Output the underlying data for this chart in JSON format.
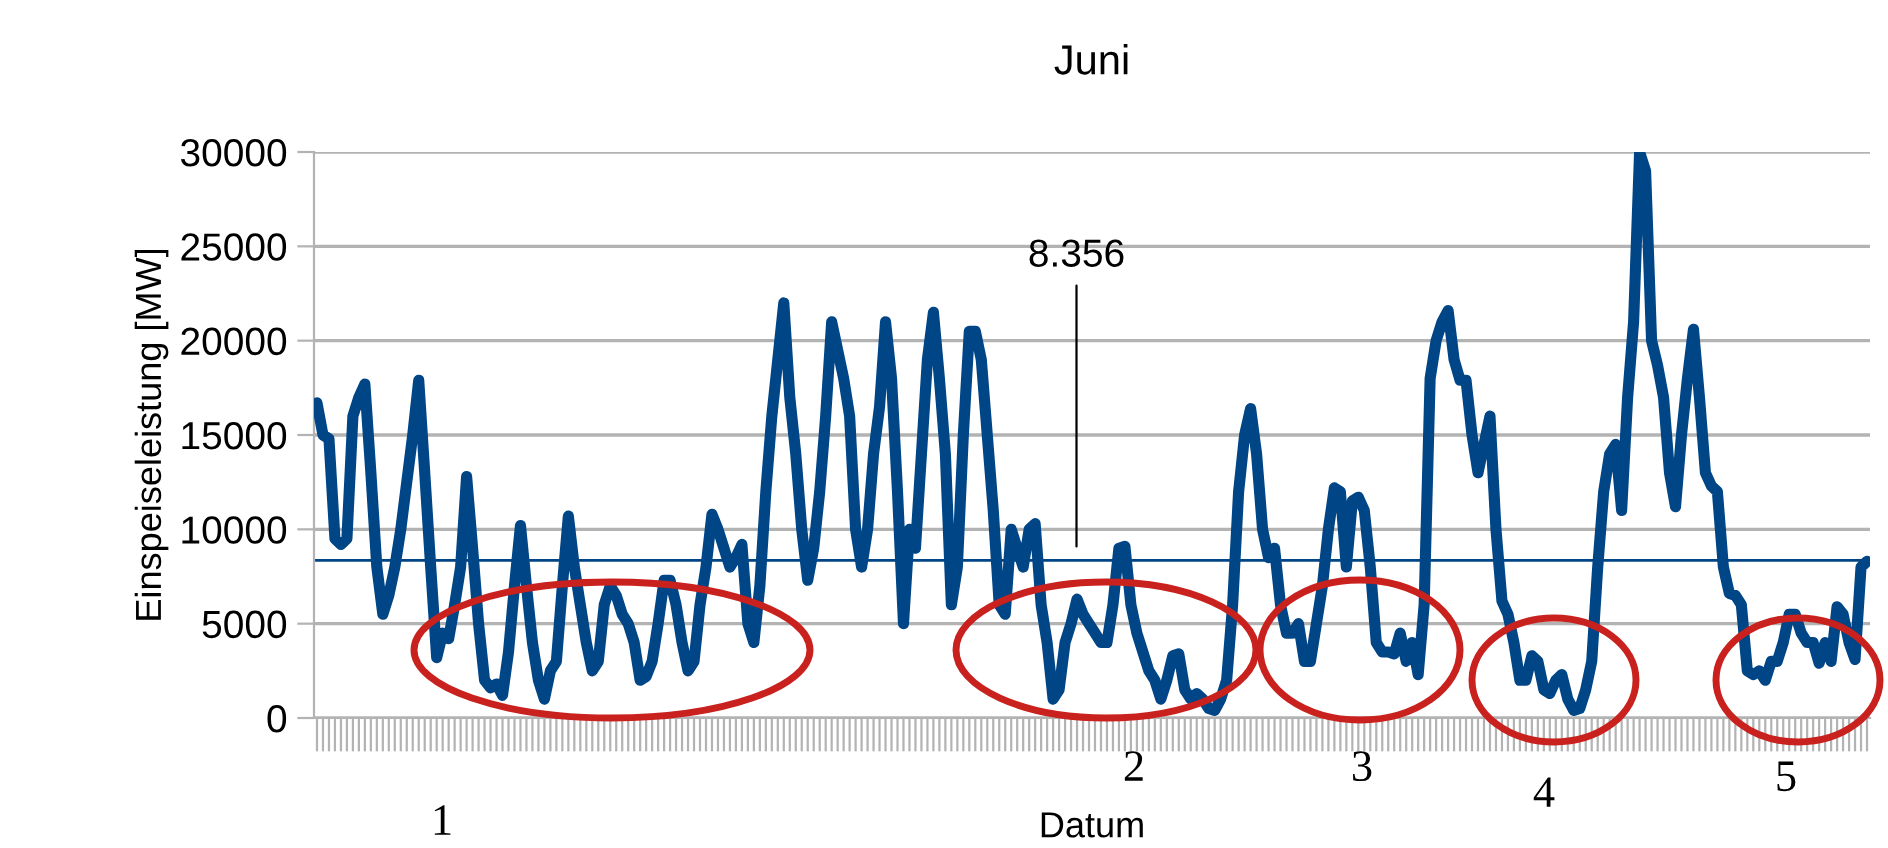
{
  "chart_data": {
    "type": "line",
    "title": "Juni",
    "xlabel": "Datum",
    "ylabel": "Einspeiseleistung [MW]",
    "categories": [
      null,
      null,
      null,
      null,
      null,
      null,
      null,
      null,
      null,
      null,
      null,
      null,
      null,
      null,
      null,
      null,
      null,
      null,
      null,
      null,
      null,
      null,
      null,
      null,
      null,
      null,
      null,
      null,
      null,
      null,
      null,
      null,
      null,
      null,
      null,
      null,
      null,
      null,
      null,
      null,
      null,
      null,
      null,
      null,
      null,
      null,
      null,
      null,
      null,
      null,
      null,
      null,
      null,
      null,
      null,
      null,
      null,
      null,
      null,
      null,
      null,
      null,
      null,
      null,
      null,
      null,
      null,
      null,
      null,
      null,
      null,
      null,
      null,
      null,
      null,
      null,
      null,
      null,
      null,
      null,
      null,
      null,
      null,
      null,
      null,
      null,
      null,
      null,
      null,
      null,
      null,
      null,
      null,
      null,
      null,
      null,
      null,
      null,
      null,
      null,
      null,
      null,
      null,
      null,
      null,
      null,
      null,
      null,
      null,
      null,
      null,
      null,
      null,
      null,
      null,
      null,
      null,
      null,
      null,
      null,
      null,
      null,
      null,
      null,
      null,
      null,
      null,
      null,
      null,
      null,
      null,
      null,
      null,
      null,
      null,
      null,
      null,
      null,
      null,
      null,
      null,
      null,
      null,
      null,
      null,
      null,
      null,
      null,
      null,
      null,
      null,
      null,
      null,
      null,
      null,
      null,
      null,
      null,
      null,
      null,
      null,
      null,
      null,
      null,
      null,
      null,
      null,
      null,
      null,
      null,
      null,
      null,
      null,
      null,
      null,
      null,
      null,
      null,
      null,
      null,
      null,
      null,
      null,
      null,
      null,
      null,
      null,
      null,
      null,
      null,
      null,
      null,
      null,
      null,
      null,
      null,
      null,
      null,
      null,
      null,
      null,
      null,
      null,
      null,
      null,
      null,
      null,
      null,
      null,
      null,
      null,
      null,
      null,
      null,
      null,
      null,
      null,
      null,
      null,
      null,
      null,
      null,
      null,
      null,
      null,
      null,
      null,
      null,
      null,
      null,
      null,
      null,
      null,
      null,
      null,
      null,
      null,
      null,
      null,
      null,
      null,
      null,
      null,
      null,
      null,
      null,
      null,
      null,
      null,
      null,
      null,
      null,
      null,
      null,
      null,
      null,
      null,
      null,
      null,
      null
    ],
    "series": [
      {
        "color": "#004586",
        "values": [
          16700,
          15000,
          14800,
          9500,
          9200,
          9500,
          16000,
          17000,
          17700,
          13000,
          8000,
          5500,
          6500,
          8000,
          10000,
          12500,
          15000,
          17900,
          13000,
          8000,
          3200,
          4500,
          4200,
          6000,
          8000,
          12800,
          9000,
          5000,
          2000,
          1600,
          1800,
          1200,
          3500,
          7000,
          10200,
          7000,
          4000,
          2000,
          1000,
          2500,
          3000,
          7000,
          10700,
          8000,
          6000,
          4000,
          2500,
          3000,
          6000,
          7000,
          6500,
          5500,
          5000,
          4000,
          2000,
          2200,
          3000,
          5000,
          7300,
          7300,
          6000,
          4000,
          2500,
          3000,
          6000,
          8000,
          10800,
          10000,
          9000,
          8000,
          8500,
          9200,
          5000,
          4000,
          7000,
          12000,
          16000,
          19000,
          22000,
          17000,
          14000,
          10000,
          7300,
          9000,
          12000,
          16000,
          21000,
          19500,
          18000,
          16000,
          10000,
          8000,
          10000,
          14000,
          16500,
          21000,
          18000,
          12000,
          5000,
          10000,
          9000,
          14000,
          19000,
          21500,
          18000,
          14000,
          6000,
          8000,
          15000,
          20500,
          20500,
          19000,
          15000,
          11000,
          6000,
          5500,
          10000,
          9000,
          8000,
          10000,
          10300,
          6000,
          4000,
          1000,
          1500,
          4000,
          5000,
          6300,
          5500,
          5000,
          4500,
          4000,
          4000,
          6000,
          9000,
          9100,
          6000,
          4500,
          3500,
          2500,
          2000,
          1000,
          2000,
          3300,
          3400,
          1500,
          1000,
          1300,
          1000,
          500,
          400,
          1000,
          2000,
          6000,
          12000,
          15000,
          16400,
          14000,
          10000,
          8500,
          9000,
          6000,
          4500,
          4500,
          5000,
          3000,
          3000,
          5000,
          7000,
          10000,
          12200,
          12000,
          8000,
          11500,
          11700,
          11000,
          8000,
          4000,
          3500,
          3500,
          3400,
          4500,
          3000,
          4000,
          2300,
          6000,
          18000,
          20000,
          21000,
          21600,
          19000,
          17900,
          17900,
          15000,
          13000,
          14500,
          16000,
          10000,
          6200,
          5500,
          4000,
          2000,
          2000,
          3300,
          3000,
          1500,
          1300,
          2000,
          2300,
          1000,
          400,
          500,
          1500,
          3000,
          8000,
          12000,
          14000,
          14500,
          11000,
          17000,
          21000,
          30000,
          29000,
          20000,
          18700,
          17000,
          13000,
          11200,
          15000,
          18000,
          20600,
          17000,
          13000,
          12300,
          12000,
          8000,
          6600,
          6500,
          6000,
          2500,
          2300,
          2500,
          2000,
          3000,
          3000,
          4000,
          5500,
          5500,
          4500,
          4000,
          4000,
          2900,
          4000,
          3000,
          5900,
          5500,
          4000,
          3100,
          8000,
          8300
        ]
      }
    ],
    "ylim": [
      0,
      30000
    ],
    "yticks": [
      0,
      5000,
      10000,
      15000,
      20000,
      25000,
      30000
    ],
    "grid": "y",
    "line_style": "solid",
    "ref_lines": [
      {
        "axis": "y",
        "value": 8356,
        "label": "8.356",
        "color": "#004586"
      }
    ],
    "annotations": [
      "1",
      "2",
      "3",
      "4",
      "5"
    ]
  }
}
